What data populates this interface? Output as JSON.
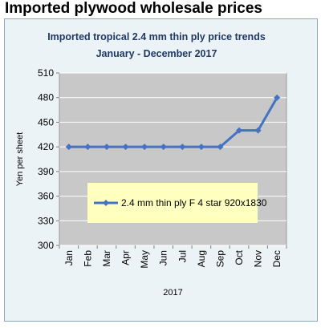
{
  "page_title": "Imported plywood wholesale prices",
  "chart_data": {
    "type": "line",
    "title": "Imported tropical 2.4 mm thin ply price trends",
    "subtitle": "January - December 2017",
    "ylabel": "Yen per sheet",
    "xlabel": "2017",
    "ylim": [
      300,
      510
    ],
    "yticks": [
      300,
      330,
      360,
      390,
      420,
      450,
      480,
      510
    ],
    "categories": [
      "Jan",
      "Feb",
      "Mar",
      "Apr",
      "May",
      "Jun",
      "Jul",
      "Aug",
      "Sep",
      "Oct",
      "Nov",
      "Dec"
    ],
    "series": [
      {
        "name": "2.4 mm thin ply F 4 star 920x1830",
        "values": [
          420,
          420,
          420,
          420,
          420,
          420,
          420,
          420,
          420,
          440,
          440,
          480
        ]
      }
    ],
    "grid": "horizontal",
    "legend_position": "lower-center",
    "colors": {
      "line": "#4472c4",
      "plot_background": "#c8c8c8",
      "chart_background": "#ebf3f6",
      "legend_background": "#ffffc0",
      "title": "#1f3864"
    }
  }
}
